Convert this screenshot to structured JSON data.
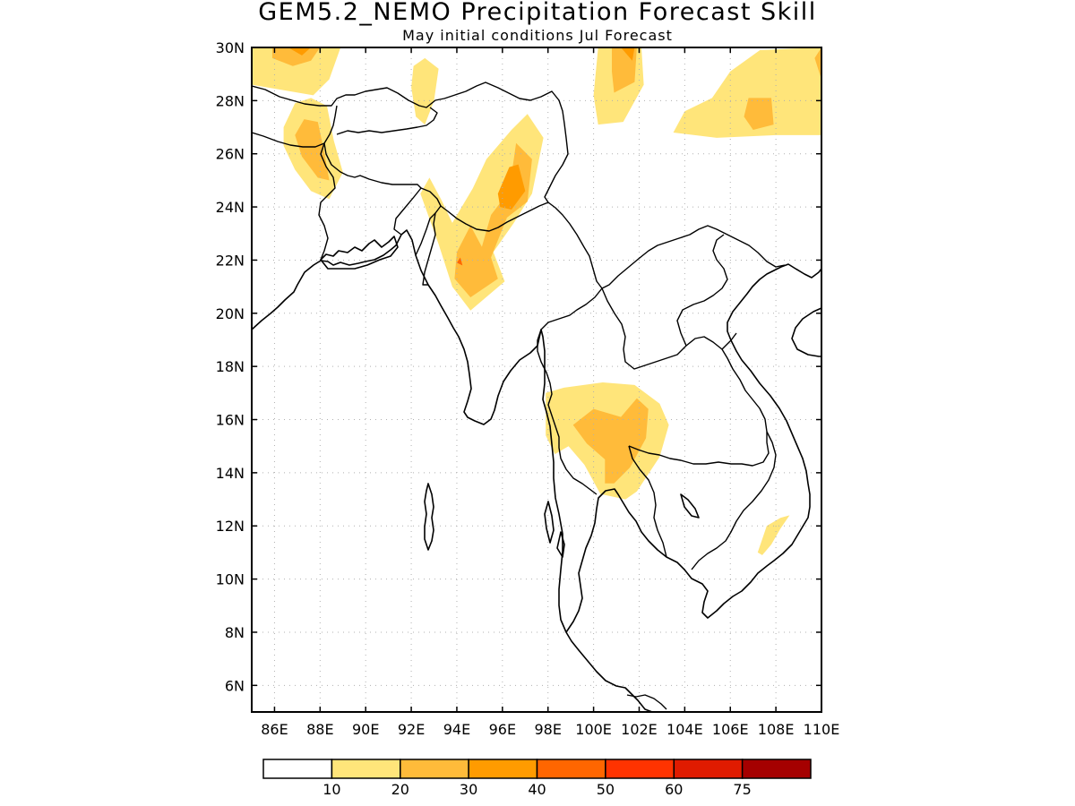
{
  "title": "GEM5.2_NEMO Precipitation Forecast Skill",
  "subtitle": "May initial conditions   Jul Forecast",
  "map": {
    "lon_range": [
      85,
      110
    ],
    "lat_range": [
      5,
      30
    ],
    "lon_ticks": [
      {
        "value": 86,
        "label": "86E"
      },
      {
        "value": 88,
        "label": "88E"
      },
      {
        "value": 90,
        "label": "90E"
      },
      {
        "value": 92,
        "label": "92E"
      },
      {
        "value": 94,
        "label": "94E"
      },
      {
        "value": 96,
        "label": "96E"
      },
      {
        "value": 98,
        "label": "98E"
      },
      {
        "value": 100,
        "label": "100E"
      },
      {
        "value": 102,
        "label": "102E"
      },
      {
        "value": 104,
        "label": "104E"
      },
      {
        "value": 106,
        "label": "106E"
      },
      {
        "value": 108,
        "label": "108E"
      },
      {
        "value": 110,
        "label": "110E"
      }
    ],
    "lat_ticks": [
      {
        "value": 6,
        "label": "6N"
      },
      {
        "value": 8,
        "label": "8N"
      },
      {
        "value": 10,
        "label": "10N"
      },
      {
        "value": 12,
        "label": "12N"
      },
      {
        "value": 14,
        "label": "14N"
      },
      {
        "value": 16,
        "label": "16N"
      },
      {
        "value": 18,
        "label": "18N"
      },
      {
        "value": 20,
        "label": "20N"
      },
      {
        "value": 22,
        "label": "22N"
      },
      {
        "value": 24,
        "label": "24N"
      },
      {
        "value": 26,
        "label": "26N"
      },
      {
        "value": 28,
        "label": "28N"
      },
      {
        "value": 30,
        "label": "30N"
      }
    ],
    "grid": true
  },
  "colorbar": {
    "levels": [
      "10",
      "20",
      "30",
      "40",
      "50",
      "60",
      "75"
    ],
    "colors": [
      "#ffffff",
      "#ffe57a",
      "#ffbb3a",
      "#ff9b00",
      "#ff6600",
      "#ff3300",
      "#e01b00",
      "#a50000"
    ]
  },
  "skill_regions": [
    {
      "name": "northwest-top",
      "level": 1,
      "polygon": [
        [
          85,
          30
        ],
        [
          88.9,
          30
        ],
        [
          88.4,
          28.8
        ],
        [
          87.7,
          28.2
        ],
        [
          85,
          28.6
        ]
      ]
    },
    {
      "name": "northwest-top",
      "level": 2,
      "polygon": [
        [
          85.9,
          30
        ],
        [
          88,
          30
        ],
        [
          87.6,
          29.5
        ],
        [
          86.8,
          29.3
        ],
        [
          85.9,
          29.6
        ]
      ]
    },
    {
      "name": "northwest-top",
      "level": 3,
      "polygon": [
        [
          86.6,
          30
        ],
        [
          87.6,
          30
        ],
        [
          87.2,
          29.7
        ]
      ]
    },
    {
      "name": "darjeeling",
      "level": 1,
      "polygon": [
        [
          86.4,
          27
        ],
        [
          86.9,
          27.9
        ],
        [
          87.6,
          28.1
        ],
        [
          88.3,
          27.8
        ],
        [
          88.6,
          26.5
        ],
        [
          89,
          25.3
        ],
        [
          88.4,
          24.3
        ],
        [
          87.6,
          24.6
        ],
        [
          86.9,
          25.4
        ],
        [
          86.4,
          26.3
        ]
      ]
    },
    {
      "name": "darjeeling",
      "level": 2,
      "polygon": [
        [
          86.9,
          26.7
        ],
        [
          87.3,
          27.3
        ],
        [
          87.9,
          27.2
        ],
        [
          88.2,
          26
        ],
        [
          88.4,
          25
        ],
        [
          87.9,
          25.1
        ],
        [
          87.2,
          25.9
        ]
      ]
    },
    {
      "name": "bhutan",
      "level": 1,
      "polygon": [
        [
          92.1,
          29.3
        ],
        [
          92.6,
          29.6
        ],
        [
          93.2,
          29.2
        ],
        [
          93,
          28
        ],
        [
          92.6,
          27.1
        ],
        [
          92.2,
          27.4
        ],
        [
          92,
          28.5
        ]
      ]
    },
    {
      "name": "north-myanmar",
      "level": 1,
      "polygon": [
        [
          92.4,
          24.5
        ],
        [
          92.8,
          25.1
        ],
        [
          93.3,
          24.3
        ],
        [
          93.8,
          23.4
        ],
        [
          94.7,
          24.7
        ],
        [
          95.3,
          25.8
        ],
        [
          96.4,
          26.9
        ],
        [
          97.1,
          27.5
        ],
        [
          97.8,
          26.6
        ],
        [
          97.3,
          24.5
        ],
        [
          96.5,
          23.4
        ],
        [
          95.6,
          22.3
        ],
        [
          96.1,
          21.2
        ],
        [
          94.6,
          20.1
        ],
        [
          93.8,
          21
        ],
        [
          93.2,
          22.6
        ]
      ]
    },
    {
      "name": "north-myanmar",
      "level": 2,
      "polygon": [
        [
          94,
          22.3
        ],
        [
          94.6,
          23.3
        ],
        [
          95.1,
          22.5
        ],
        [
          95.5,
          23.7
        ],
        [
          96.3,
          24.6
        ],
        [
          96.6,
          26.4
        ],
        [
          97.3,
          25.8
        ],
        [
          97.1,
          24.2
        ],
        [
          96.2,
          23.6
        ],
        [
          95.5,
          22.1
        ],
        [
          95.8,
          21.3
        ],
        [
          94.6,
          20.6
        ],
        [
          93.9,
          21.3
        ]
      ]
    },
    {
      "name": "north-myanmar",
      "level": 3,
      "polygon": [
        [
          95.8,
          24.5
        ],
        [
          96.3,
          25.5
        ],
        [
          96.7,
          25.6
        ],
        [
          97,
          24.6
        ],
        [
          96.4,
          23.9
        ],
        [
          95.9,
          24
        ]
      ]
    },
    {
      "name": "north-myanmar",
      "level": 4,
      "polygon": [
        [
          94,
          21.9
        ],
        [
          94.15,
          22.1
        ],
        [
          94.25,
          21.8
        ]
      ]
    },
    {
      "name": "northeast-top",
      "level": 1,
      "polygon": [
        [
          100.2,
          30
        ],
        [
          102.1,
          30
        ],
        [
          102.2,
          28.6
        ],
        [
          101.3,
          27.2
        ],
        [
          100.2,
          27.1
        ],
        [
          100,
          28.2
        ]
      ]
    },
    {
      "name": "northeast-top",
      "level": 2,
      "polygon": [
        [
          100.8,
          30
        ],
        [
          101.9,
          30
        ],
        [
          101.8,
          28.7
        ],
        [
          100.9,
          28.3
        ],
        [
          100.8,
          29.1
        ]
      ]
    },
    {
      "name": "northeast-top",
      "level": 3,
      "polygon": [
        [
          101.2,
          30
        ],
        [
          101.8,
          30
        ],
        [
          101.7,
          29.5
        ]
      ]
    },
    {
      "name": "far-northeast",
      "level": 1,
      "polygon": [
        [
          103.5,
          26.8
        ],
        [
          104,
          27.6
        ],
        [
          105.2,
          28.1
        ],
        [
          106,
          29.1
        ],
        [
          107.3,
          29.9
        ],
        [
          110,
          30
        ],
        [
          110,
          26.7
        ],
        [
          108,
          26.7
        ],
        [
          105.4,
          26.6
        ]
      ]
    },
    {
      "name": "far-northeast",
      "level": 2,
      "polygon": [
        [
          106.6,
          27.4
        ],
        [
          106.8,
          28.1
        ],
        [
          107.8,
          28.1
        ],
        [
          107.9,
          27.1
        ],
        [
          107,
          26.9
        ]
      ]
    },
    {
      "name": "far-northeast",
      "level": 2,
      "polygon": [
        [
          109.7,
          29.6
        ],
        [
          110,
          30
        ],
        [
          110,
          28.8
        ]
      ]
    },
    {
      "name": "central-thailand",
      "level": 1,
      "polygon": [
        [
          97.9,
          15.4
        ],
        [
          97.9,
          17
        ],
        [
          98.7,
          17.2
        ],
        [
          100.4,
          17.4
        ],
        [
          101.8,
          17.3
        ],
        [
          102.9,
          16.6
        ],
        [
          103.3,
          15.8
        ],
        [
          102.9,
          14.6
        ],
        [
          101.9,
          13.3
        ],
        [
          101.4,
          13
        ],
        [
          100.3,
          13.2
        ],
        [
          99.6,
          14.3
        ],
        [
          98.9,
          15
        ],
        [
          98.3,
          14.7
        ]
      ]
    },
    {
      "name": "central-thailand",
      "level": 2,
      "polygon": [
        [
          99.1,
          15.8
        ],
        [
          100,
          16.4
        ],
        [
          101.2,
          16.1
        ],
        [
          101.9,
          16.8
        ],
        [
          102.4,
          16.4
        ],
        [
          102.3,
          15.3
        ],
        [
          101.6,
          14.2
        ],
        [
          100.9,
          13.6
        ],
        [
          100.5,
          13.6
        ],
        [
          100.5,
          14.5
        ],
        [
          99.7,
          15.1
        ]
      ]
    },
    {
      "name": "vietnam-coast",
      "level": 1,
      "polygon": [
        [
          107.2,
          11
        ],
        [
          107.6,
          12
        ],
        [
          108.2,
          12.3
        ],
        [
          108.6,
          12.4
        ],
        [
          108.2,
          11.9
        ],
        [
          107.8,
          11.3
        ],
        [
          107.4,
          10.9
        ]
      ]
    }
  ]
}
